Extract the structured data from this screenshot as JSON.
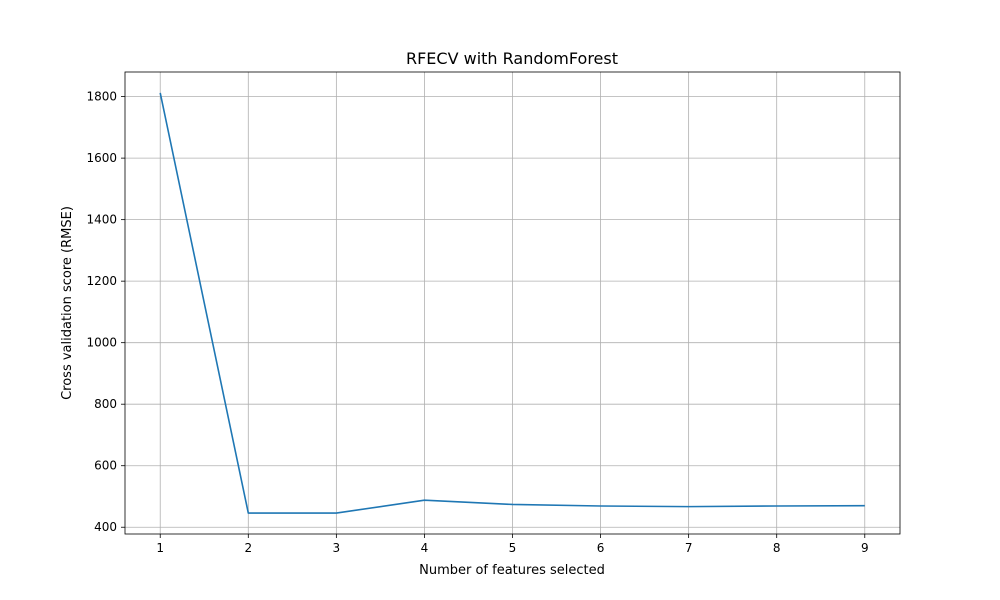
{
  "chart_data": {
    "type": "line",
    "title": "RFECV with RandomForest",
    "xlabel": "Number of features selected",
    "ylabel": "Cross validation score (RMSE)",
    "x": [
      1,
      2,
      3,
      4,
      5,
      6,
      7,
      8,
      9
    ],
    "series": [
      {
        "values": [
          1812,
          446,
          446,
          488,
          474,
          469,
          467,
          469,
          470
        ],
        "color": "#1f77b4"
      }
    ],
    "xticks": [
      1,
      2,
      3,
      4,
      5,
      6,
      7,
      8,
      9
    ],
    "yticks": [
      400,
      600,
      800,
      1000,
      1200,
      1400,
      1600,
      1800
    ],
    "xlim": [
      0.6,
      9.4
    ],
    "ylim": [
      378,
      1880
    ],
    "grid": true,
    "legend": "none"
  }
}
